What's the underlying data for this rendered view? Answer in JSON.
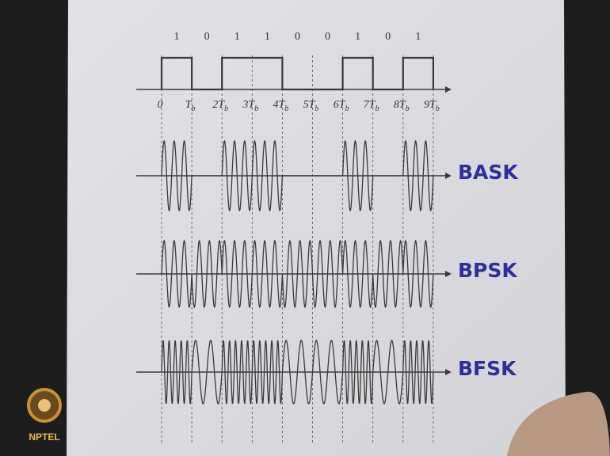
{
  "diagram": {
    "bits": [
      1,
      0,
      1,
      1,
      0,
      0,
      1,
      0,
      1
    ],
    "time_labels": [
      {
        "text": "0"
      },
      {
        "text": "T",
        "sub": "b"
      },
      {
        "text": "2T",
        "sub": "b"
      },
      {
        "text": "3T",
        "sub": "b"
      },
      {
        "text": "4T",
        "sub": "b"
      },
      {
        "text": "5T",
        "sub": "b"
      },
      {
        "text": "6T",
        "sub": "b"
      },
      {
        "text": "7T",
        "sub": "b"
      },
      {
        "text": "8T",
        "sub": "b"
      },
      {
        "text": "9T",
        "sub": "b"
      }
    ],
    "waveforms": [
      {
        "label": "BASK",
        "kind": "ask"
      },
      {
        "label": "BPSK",
        "kind": "psk"
      },
      {
        "label": "BFSK",
        "kind": "fsk"
      }
    ],
    "logo": "NPTEL"
  }
}
